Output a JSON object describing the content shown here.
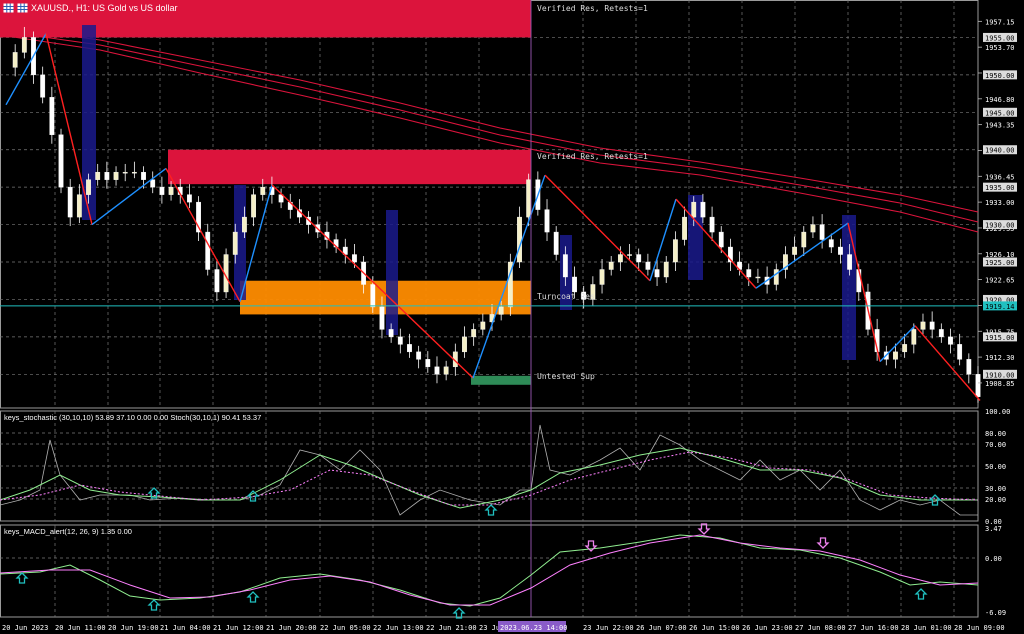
{
  "chart_title": "XAUUSD., H1: US Gold vs US dollar",
  "colors": {
    "background": "#000000",
    "grid": "#7a7a7a",
    "bull_candle": "#f5f0c8",
    "bear_candle": "#ffffff",
    "zone_resistance": "#dc143c",
    "zone_turncoat": "#ff8c00",
    "zone_support": "#2e8b57",
    "zigzag_up": "#1e90ff",
    "zigzag_down": "#ff2020",
    "moving_average": "#dc143c",
    "current_price_line": "#20c0c0",
    "stoch_main": "#90ee90",
    "stoch_signal": "#ff80ff",
    "macd_main": "#90ee90",
    "macd_signal": "#ff80ff",
    "arrow_up": "#20c0c0",
    "arrow_down": "#ee82ee"
  },
  "zones": {
    "z1": "Verified Res, Retests=1",
    "z2": "Verified Res, Retests=1",
    "z3": "Turncoat Res",
    "z4": "Untested Sup"
  },
  "price_axis": {
    "labels": [
      "1957.15",
      "1953.70",
      "1950.25",
      "1946.80",
      "1943.35",
      "1939.90",
      "1936.45",
      "1933.00",
      "1929.55",
      "1926.10",
      "1922.65",
      "1919.20",
      "1915.75",
      "1912.30",
      "1908.85"
    ],
    "boxed": [
      "1955.00",
      "1950.00",
      "1945.00",
      "1940.00",
      "1935.00",
      "1930.00",
      "1925.00",
      "1920.00",
      "1915.00",
      "1910.00"
    ],
    "current_price": "1919.14"
  },
  "time_axis": {
    "labels": [
      "20 Jun 2023",
      "20 Jun 11:00",
      "20 Jun 19:00",
      "21 Jun 04:00",
      "21 Jun 12:00",
      "21 Jun 20:00",
      "22 Jun 05:00",
      "22 Jun 13:00",
      "22 Jun 21:00",
      "23 Jun",
      "23 Jun 22:00",
      "26 Jun 07:00",
      "26 Jun 15:00",
      "26 Jun 23:00",
      "27 Jun 08:00",
      "27 Jun 16:00",
      "28 Jun 01:00",
      "28 Jun 09:00"
    ],
    "crosshair": "2023.06.23 14:00"
  },
  "stochastic": {
    "title": "keys_stochastic (30,10,10) 53.89 37.10 0.00 0.00 Stoch(30,10,1) 90.41 53.37",
    "axis": [
      "100.00",
      "80.00",
      "70.00",
      "50.00",
      "30.00",
      "20.00",
      "0.00"
    ]
  },
  "macd": {
    "title": "keys_MACD_alert(12, 26, 9) 1.35 0.00",
    "axis": [
      "3.47",
      "0.00",
      "-6.09"
    ]
  },
  "chart_data": {
    "type": "candlestick",
    "title": "XAUUSD., H1: US Gold vs US dollar",
    "symbol": "XAUUSD.",
    "timeframe": "H1",
    "ylim": [
      1905.5,
      1960.0
    ],
    "x_range": [
      "20 Jun 2023",
      "28 Jun 09:00"
    ],
    "close_path": [
      1951,
      1953,
      1955,
      1950,
      1947,
      1942,
      1935,
      1931,
      1934,
      1936,
      1937,
      1936,
      1937,
      1937,
      1937,
      1936,
      1935,
      1934,
      1935,
      1934,
      1933,
      1929,
      1924,
      1921,
      1926,
      1929,
      1931,
      1934,
      1935,
      1934,
      1933,
      1932,
      1931,
      1930,
      1929,
      1928,
      1927,
      1926,
      1925,
      1922,
      1919,
      1916,
      1915,
      1914,
      1913,
      1912,
      1911,
      1910,
      1911,
      1913,
      1915,
      1916,
      1917,
      1918,
      1919,
      1925,
      1931,
      1936,
      1932,
      1929,
      1926,
      1923,
      1921,
      1920,
      1922,
      1924,
      1925,
      1926,
      1926,
      1925,
      1924,
      1923,
      1925,
      1928,
      1931,
      1933,
      1931,
      1929,
      1927,
      1925,
      1924,
      1923,
      1923,
      1922,
      1924,
      1926,
      1927,
      1929,
      1930,
      1928,
      1927,
      1926,
      1924,
      1921,
      1916,
      1913,
      1912,
      1913,
      1914,
      1916,
      1917,
      1916,
      1915,
      1914,
      1912,
      1910,
      1907
    ],
    "zigzag": [
      {
        "t": "20 Jun 2023",
        "price": 1946.0
      },
      {
        "t": "20 Jun 09:00",
        "price": 1955.5
      },
      {
        "t": "20 Jun 11:00",
        "price": 1930.0
      },
      {
        "t": "20 Jun 19:00",
        "price": 1937.5
      },
      {
        "t": "21 Jun 10:00",
        "price": 1919.7
      },
      {
        "t": "21 Jun 14:00",
        "price": 1935.3
      },
      {
        "t": "22 Jun 21:00",
        "price": 1909.5
      },
      {
        "t": "23 Jun 14:00",
        "price": 1936.6
      },
      {
        "t": "26 Jun 05:00",
        "price": 1922.5
      },
      {
        "t": "26 Jun 09:00",
        "price": 1933.4
      },
      {
        "t": "26 Jun 23:00",
        "price": 1921.5
      },
      {
        "t": "27 Jun 10:00",
        "price": 1930.2
      },
      {
        "t": "27 Jun 18:00",
        "price": 1911.7
      },
      {
        "t": "28 Jun 01:00",
        "price": 1916.5
      },
      {
        "t": "28 Jun 09:00",
        "price": 1906.5
      }
    ],
    "zones": [
      {
        "label": "Verified Res, Retests=1",
        "low": 1955.0,
        "high": 1960.0
      },
      {
        "label": "Verified Res, Retests=1",
        "low": 1935.4,
        "high": 1940.0
      },
      {
        "label": "Turncoat Res",
        "low": 1918.0,
        "high": 1922.5
      },
      {
        "label": "Untested Sup",
        "low": 1908.6,
        "high": 1909.8
      }
    ],
    "current_price": 1919.14
  }
}
